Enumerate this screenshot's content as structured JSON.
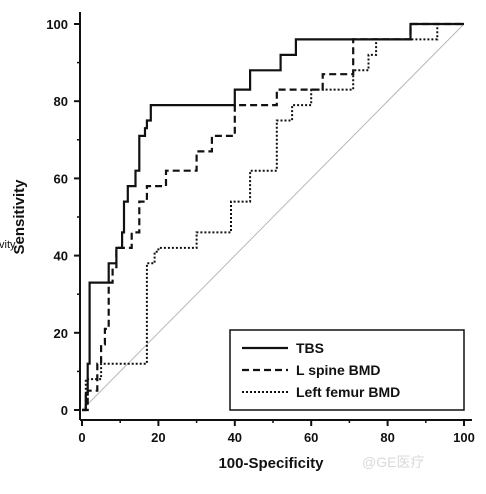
{
  "stray_text": "Sensitivity",
  "watermark": "@GE医疗",
  "colors": {
    "line": "#111111",
    "reference": "#b8b8b8",
    "watermark": "#d9d9d9"
  },
  "chart_data": {
    "type": "line",
    "title": "",
    "xlabel": "100-Specificity",
    "ylabel": "Sensitivity",
    "xlim": [
      0,
      100
    ],
    "ylim": [
      0,
      100
    ],
    "xticks": [
      0,
      20,
      40,
      60,
      80,
      100
    ],
    "yticks": [
      0,
      20,
      40,
      60,
      80,
      100
    ],
    "grid": false,
    "legend_position": "bottom-right",
    "reference_line": {
      "x": [
        0,
        100
      ],
      "y": [
        0,
        100
      ]
    },
    "series": [
      {
        "name": "TBS",
        "style": "solid",
        "x": [
          0,
          1,
          1,
          1.5,
          1.5,
          2,
          2,
          7,
          7,
          9,
          9,
          10.5,
          10.5,
          11,
          11,
          12,
          12,
          14,
          14,
          15,
          15,
          16.5,
          16.5,
          17,
          17,
          18,
          18,
          25,
          25,
          40,
          40,
          44,
          44,
          52,
          52,
          56,
          56,
          61,
          61,
          64,
          64,
          86,
          86,
          100
        ],
        "y": [
          0,
          0,
          4,
          4,
          12,
          12,
          33,
          33,
          38,
          38,
          42,
          42,
          46,
          46,
          54,
          54,
          58,
          58,
          62,
          62,
          71,
          71,
          73,
          73,
          75,
          75,
          79,
          79,
          79,
          79,
          83,
          83,
          88,
          88,
          92,
          92,
          96,
          96,
          96,
          96,
          96,
          96,
          100,
          100
        ]
      },
      {
        "name": "L spine BMD",
        "style": "dashed",
        "x": [
          0,
          1.5,
          1.5,
          4,
          4,
          5,
          5,
          6,
          6,
          7,
          7,
          8,
          8,
          9,
          9,
          10,
          10,
          13,
          13,
          15,
          15,
          17,
          17,
          18,
          18,
          22,
          22,
          26,
          26,
          30,
          30,
          34,
          34,
          40,
          40,
          46,
          46,
          51,
          51,
          63,
          63,
          71,
          71,
          74,
          74,
          86,
          86,
          100
        ],
        "y": [
          0,
          0,
          5,
          5,
          12,
          12,
          17,
          17,
          21,
          21,
          33,
          33,
          37,
          37,
          42,
          42,
          42,
          42,
          46,
          46,
          54,
          54,
          58,
          58,
          58,
          58,
          62,
          62,
          62,
          62,
          67,
          67,
          71,
          71,
          79,
          79,
          79,
          79,
          83,
          83,
          87,
          87,
          96,
          96,
          96,
          96,
          100,
          100
        ]
      },
      {
        "name": "Left femur BMD",
        "style": "dotted",
        "x": [
          0,
          1,
          1,
          5,
          5,
          17,
          17,
          19,
          19,
          20,
          20,
          21,
          21,
          30,
          30,
          39,
          39,
          44,
          44,
          51,
          51,
          55,
          55,
          60,
          60,
          71,
          71,
          75,
          75,
          77,
          77,
          85,
          85,
          90,
          90,
          93,
          93,
          100
        ],
        "y": [
          0,
          0,
          8,
          8,
          12,
          12,
          38,
          38,
          41,
          41,
          42,
          42,
          42,
          42,
          46,
          46,
          54,
          54,
          62,
          62,
          75,
          75,
          79,
          79,
          83,
          83,
          88,
          88,
          92,
          92,
          96,
          96,
          96,
          96,
          96,
          96,
          100,
          100
        ]
      }
    ]
  }
}
